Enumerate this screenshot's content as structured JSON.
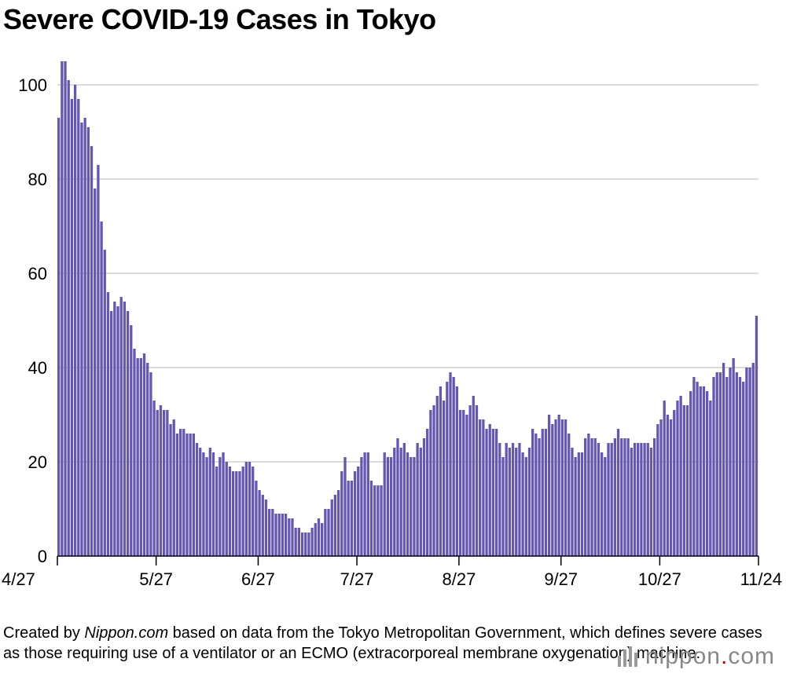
{
  "colors": {
    "bar": "#6557ad",
    "grid": "#d0d0d0",
    "text": "#000000"
  },
  "footer": {
    "credit_before": "Created by ",
    "credit_site": "Nippon.com",
    "credit_after": " based on data from the Tokyo Metropolitan Government, which defines severe cases as those requiring use of a ventilator or an ECMO (extracorporeal membrane oxygenation) machine.",
    "logo_name": "nippon",
    "logo_dot": ".",
    "logo_tld": "com",
    "logo_icon": "logo-bars-icon"
  },
  "chart_data": {
    "type": "bar",
    "title": "Severe COVID-19 Cases in Tokyo",
    "xlabel": "",
    "ylabel": "",
    "ylim": [
      0,
      105
    ],
    "yticks": [
      0,
      20,
      40,
      60,
      80,
      100
    ],
    "grid": true,
    "x_tick_labels": [
      "4/27",
      "5/27",
      "6/27",
      "7/27",
      "8/27",
      "9/27",
      "10/27",
      "11/24"
    ],
    "x_tick_day_index": [
      0,
      30,
      61,
      91,
      122,
      153,
      183,
      211
    ],
    "start_date": "4/27",
    "end_date": "11/24",
    "values": [
      93,
      105,
      105,
      101,
      97,
      100,
      97,
      92,
      93,
      91,
      87,
      78,
      83,
      71,
      65,
      56,
      52,
      54,
      53,
      55,
      54,
      52,
      49,
      44,
      42,
      42,
      43,
      41,
      39,
      33,
      31,
      32,
      31,
      31,
      28,
      29,
      26,
      27,
      27,
      26,
      26,
      26,
      24,
      23,
      22,
      21,
      23,
      22,
      19,
      21,
      22,
      20,
      19,
      18,
      18,
      18,
      19,
      20,
      20,
      19,
      16,
      14,
      13,
      12,
      10,
      10,
      9,
      9,
      9,
      9,
      8,
      8,
      6,
      6,
      5,
      5,
      5,
      6,
      7,
      8,
      7,
      10,
      10,
      12,
      13,
      14,
      18,
      21,
      16,
      16,
      18,
      19,
      21,
      22,
      22,
      16,
      15,
      15,
      15,
      22,
      21,
      21,
      23,
      25,
      23,
      24,
      22,
      21,
      21,
      24,
      23,
      25,
      27,
      31,
      32,
      34,
      36,
      33,
      37,
      39,
      38,
      36,
      31,
      31,
      30,
      32,
      34,
      32,
      29,
      29,
      27,
      28,
      27,
      27,
      24,
      21,
      24,
      23,
      24,
      23,
      24,
      22,
      21,
      23,
      27,
      26,
      25,
      27,
      27,
      30,
      28,
      29,
      30,
      29,
      29,
      26,
      23,
      21,
      22,
      22,
      25,
      26,
      25,
      25,
      24,
      22,
      21,
      24,
      24,
      25,
      27,
      25,
      25,
      25,
      23,
      24,
      24,
      24,
      24,
      24,
      23,
      25,
      28,
      29,
      33,
      30,
      29,
      31,
      33,
      34,
      32,
      32,
      35,
      38,
      37,
      36,
      36,
      35,
      33,
      38,
      39,
      39,
      41,
      38,
      40,
      42,
      39,
      38,
      37,
      40,
      40,
      41,
      51
    ]
  }
}
